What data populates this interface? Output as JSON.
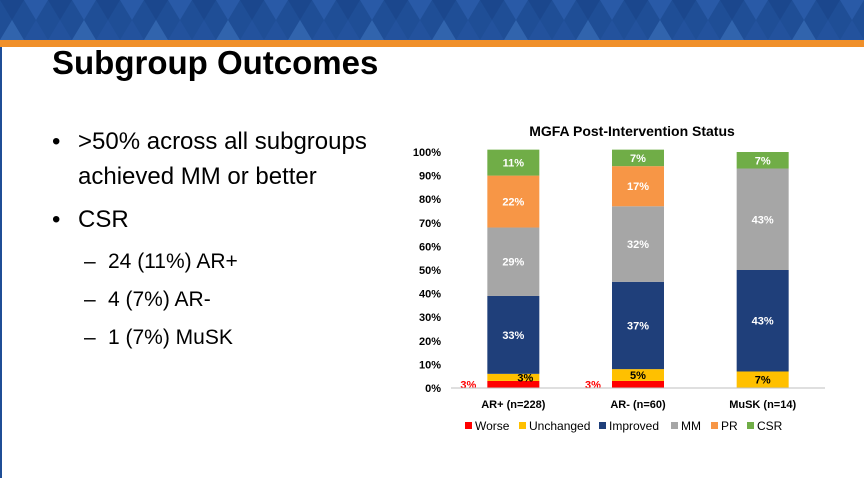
{
  "slide": {
    "title": "Subgroup Outcomes",
    "bullets": [
      {
        "level": 1,
        "text": ">50% across all subgroups achieved MM or better"
      },
      {
        "level": 1,
        "text": "CSR"
      },
      {
        "level": 2,
        "text": "24 (11%) AR+"
      },
      {
        "level": 2,
        "text": "4 (7%) AR-"
      },
      {
        "level": 2,
        "text": "1 (7%) MuSK"
      }
    ],
    "colors": {
      "banner": "#1f4e96",
      "accent": "#f0902a"
    }
  },
  "chart_data": {
    "type": "bar",
    "stacked": true,
    "title": "MGFA Post-Intervention Status",
    "categories": [
      "AR+ (n=228)",
      "AR- (n=60)",
      "MuSK (n=14)"
    ],
    "ylim": [
      0,
      100
    ],
    "yticks": [
      "0%",
      "10%",
      "20%",
      "30%",
      "40%",
      "50%",
      "60%",
      "70%",
      "80%",
      "90%",
      "100%"
    ],
    "legend_position": "bottom",
    "series": [
      {
        "name": "Worse",
        "color": "#ff0000",
        "values": [
          3,
          3,
          0
        ],
        "labels": [
          "3%",
          "3%",
          ""
        ]
      },
      {
        "name": "Unchanged",
        "color": "#ffc000",
        "values": [
          3,
          5,
          7
        ],
        "labels": [
          "3%",
          "5%",
          "7%"
        ]
      },
      {
        "name": "Improved",
        "color": "#1f3f7a",
        "values": [
          33,
          37,
          43
        ],
        "labels": [
          "33%",
          "37%",
          "43%"
        ]
      },
      {
        "name": "MM",
        "color": "#a6a6a6",
        "values": [
          29,
          32,
          43
        ],
        "labels": [
          "29%",
          "32%",
          "43%"
        ]
      },
      {
        "name": "PR",
        "color": "#f79646",
        "values": [
          22,
          17,
          0
        ],
        "labels": [
          "22%",
          "17%",
          ""
        ]
      },
      {
        "name": "CSR",
        "color": "#70ad47",
        "values": [
          11,
          7,
          7
        ],
        "labels": [
          "11%",
          "7%",
          "7%"
        ]
      }
    ]
  }
}
